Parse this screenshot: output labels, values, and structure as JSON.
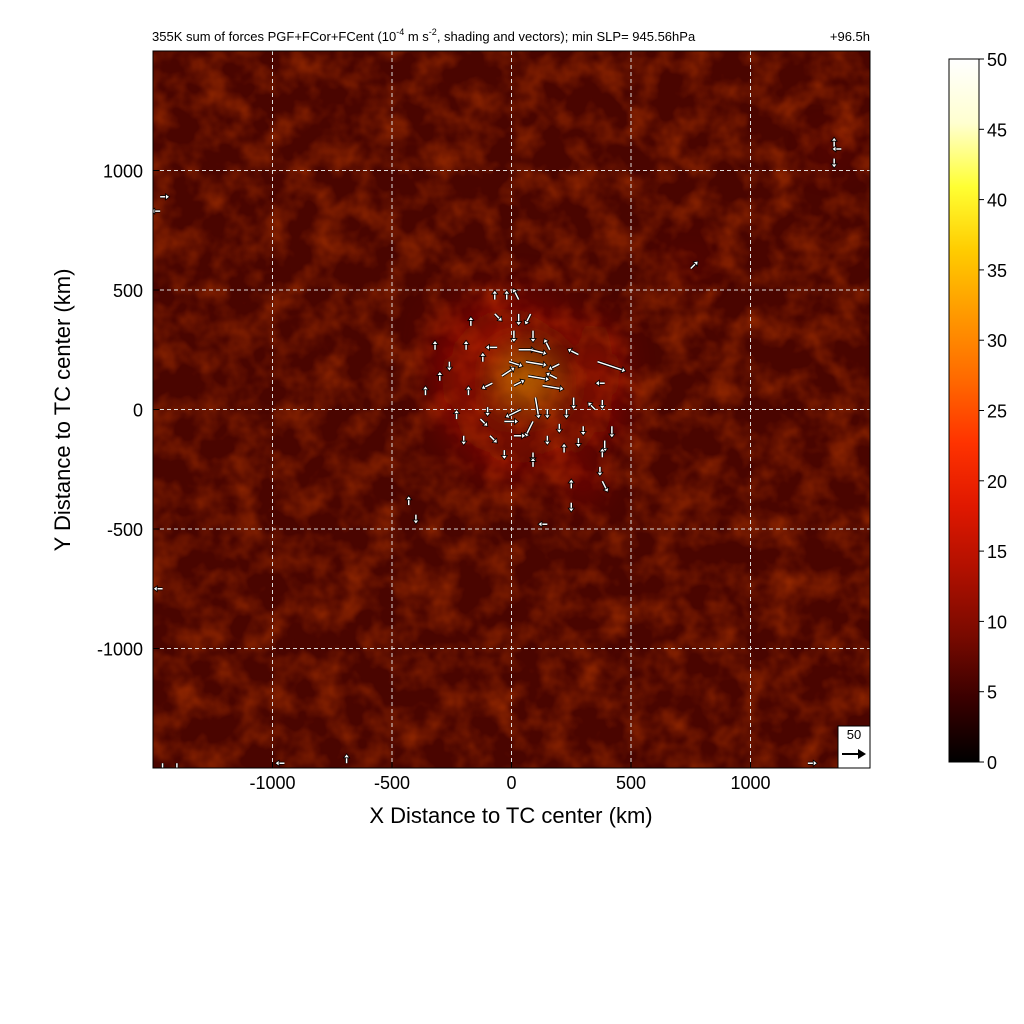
{
  "chart_data": {
    "type": "heatmap",
    "title": "355K sum of forces PGF+FCor+FCent (10",
    "title_exp": "-4",
    "title_mid": " m s",
    "title_exp2": "-2",
    "title_end": ", shading and vectors); min SLP= 945.56hPa",
    "time_label": "+96.5h",
    "xlabel": "X Distance to TC center (km)",
    "ylabel": "Y Distance to TC center (km)",
    "xlim": [
      -1500,
      1500
    ],
    "ylim": [
      -1500,
      1500
    ],
    "xticks": [
      -1000,
      -500,
      0,
      500,
      1000
    ],
    "yticks": [
      1000,
      500,
      0,
      -500,
      -1000
    ],
    "grid": true,
    "colorbar": {
      "min": 0,
      "max": 50,
      "ticks": [
        50,
        45,
        40,
        35,
        30,
        25,
        20,
        15,
        10,
        5,
        0
      ],
      "colors": [
        "#000000",
        "#3a0000",
        "#7a0a00",
        "#b01000",
        "#e01800",
        "#ff3300",
        "#ff6a00",
        "#ff9900",
        "#ffcc00",
        "#ffff33",
        "#ffffd0",
        "#ffffff"
      ]
    },
    "field": {
      "background": 6,
      "center": [
        40,
        120
      ],
      "features": [
        {
          "x": 60,
          "y": 140,
          "value": 38,
          "radius": 60
        },
        {
          "x": 120,
          "y": 100,
          "value": 30,
          "radius": 50
        },
        {
          "x": 20,
          "y": 40,
          "value": 28,
          "radius": 45
        },
        {
          "x": 380,
          "y": 160,
          "value": 22,
          "radius": 40
        },
        {
          "x": -60,
          "y": 300,
          "value": 18,
          "radius": 60
        },
        {
          "x": -250,
          "y": 200,
          "value": 16,
          "radius": 50
        },
        {
          "x": -200,
          "y": 50,
          "value": 15,
          "radius": 50
        },
        {
          "x": 420,
          "y": -50,
          "value": 14,
          "radius": 45
        },
        {
          "x": 300,
          "y": -300,
          "value": 12,
          "radius": 60
        },
        {
          "x": 750,
          "y": 610,
          "value": 14,
          "radius": 30
        },
        {
          "x": 1340,
          "y": 1080,
          "value": 13,
          "radius": 30
        }
      ]
    },
    "reference_vector": {
      "label": "50",
      "magnitude": 50
    },
    "vectors": [
      {
        "x": -70,
        "y": 460,
        "u": 0,
        "v": 1
      },
      {
        "x": -20,
        "y": 460,
        "u": 0,
        "v": 1
      },
      {
        "x": 30,
        "y": 460,
        "u": -1,
        "v": 2
      },
      {
        "x": -70,
        "y": 400,
        "u": 1,
        "v": -1
      },
      {
        "x": 30,
        "y": 400,
        "u": 0,
        "v": -2
      },
      {
        "x": 80,
        "y": 400,
        "u": -1,
        "v": -2
      },
      {
        "x": -170,
        "y": 350,
        "u": 0,
        "v": 1
      },
      {
        "x": 10,
        "y": 330,
        "u": 0,
        "v": -2
      },
      {
        "x": 90,
        "y": 330,
        "u": 0,
        "v": -2
      },
      {
        "x": -320,
        "y": 250,
        "u": 0,
        "v": 1
      },
      {
        "x": -190,
        "y": 250,
        "u": 0,
        "v": 1
      },
      {
        "x": -60,
        "y": 260,
        "u": -2,
        "v": 0
      },
      {
        "x": 30,
        "y": 250,
        "u": 4,
        "v": 0
      },
      {
        "x": 80,
        "y": 250,
        "u": 4,
        "v": -1
      },
      {
        "x": 160,
        "y": 250,
        "u": -1,
        "v": 2
      },
      {
        "x": 280,
        "y": 230,
        "u": -2,
        "v": 1
      },
      {
        "x": 360,
        "y": 200,
        "u": 9,
        "v": -3
      },
      {
        "x": -260,
        "y": 200,
        "u": 0,
        "v": -1
      },
      {
        "x": -120,
        "y": 200,
        "u": 0,
        "v": 1
      },
      {
        "x": -10,
        "y": 200,
        "u": 3,
        "v": -1
      },
      {
        "x": 60,
        "y": 200,
        "u": 6,
        "v": -1
      },
      {
        "x": 200,
        "y": 190,
        "u": -2,
        "v": -1
      },
      {
        "x": -40,
        "y": 140,
        "u": 3,
        "v": 2
      },
      {
        "x": 70,
        "y": 140,
        "u": 6,
        "v": -1
      },
      {
        "x": 190,
        "y": 130,
        "u": -2,
        "v": 1
      },
      {
        "x": -300,
        "y": 120,
        "u": 0,
        "v": 1
      },
      {
        "x": -80,
        "y": 110,
        "u": -2,
        "v": -1
      },
      {
        "x": 10,
        "y": 100,
        "u": 2,
        "v": 1
      },
      {
        "x": 130,
        "y": 100,
        "u": 6,
        "v": -1
      },
      {
        "x": 390,
        "y": 110,
        "u": -1,
        "v": 0
      },
      {
        "x": -360,
        "y": 60,
        "u": 0,
        "v": 1
      },
      {
        "x": -180,
        "y": 60,
        "u": 0,
        "v": 1
      },
      {
        "x": 100,
        "y": 50,
        "u": 1,
        "v": -6
      },
      {
        "x": 260,
        "y": 50,
        "u": 0,
        "v": -2
      },
      {
        "x": 380,
        "y": 40,
        "u": 0,
        "v": -1
      },
      {
        "x": -100,
        "y": 10,
        "u": 0,
        "v": -1
      },
      {
        "x": 40,
        "y": 0,
        "u": -4,
        "v": -2
      },
      {
        "x": 150,
        "y": 0,
        "u": 0,
        "v": -1
      },
      {
        "x": 230,
        "y": 0,
        "u": 0,
        "v": -1
      },
      {
        "x": 350,
        "y": 0,
        "u": -1,
        "v": 1
      },
      {
        "x": -230,
        "y": -40,
        "u": 0,
        "v": 1
      },
      {
        "x": -130,
        "y": -40,
        "u": 1,
        "v": -1
      },
      {
        "x": -30,
        "y": -50,
        "u": 3,
        "v": 0
      },
      {
        "x": 90,
        "y": -50,
        "u": -2,
        "v": -4
      },
      {
        "x": 200,
        "y": -60,
        "u": 0,
        "v": -1
      },
      {
        "x": 300,
        "y": -70,
        "u": 0,
        "v": -1
      },
      {
        "x": 420,
        "y": -70,
        "u": 0,
        "v": -2
      },
      {
        "x": -200,
        "y": -110,
        "u": 0,
        "v": -1
      },
      {
        "x": -90,
        "y": -110,
        "u": 1,
        "v": -1
      },
      {
        "x": 10,
        "y": -110,
        "u": 2,
        "v": 0
      },
      {
        "x": 150,
        "y": -110,
        "u": 0,
        "v": -1
      },
      {
        "x": 280,
        "y": -120,
        "u": 0,
        "v": -1
      },
      {
        "x": 390,
        "y": -130,
        "u": 0,
        "v": -2
      },
      {
        "x": -30,
        "y": -170,
        "u": 0,
        "v": -1
      },
      {
        "x": 90,
        "y": -180,
        "u": 0,
        "v": -1
      },
      {
        "x": 220,
        "y": -180,
        "u": 0,
        "v": 1
      },
      {
        "x": 380,
        "y": -200,
        "u": 0,
        "v": 1
      },
      {
        "x": 90,
        "y": -240,
        "u": 0,
        "v": 1
      },
      {
        "x": 370,
        "y": -240,
        "u": 0,
        "v": -1
      },
      {
        "x": 380,
        "y": -300,
        "u": 1,
        "v": -2
      },
      {
        "x": 250,
        "y": -330,
        "u": 0,
        "v": 1
      },
      {
        "x": -430,
        "y": -400,
        "u": 0,
        "v": 1
      },
      {
        "x": -400,
        "y": -440,
        "u": 0,
        "v": -1
      },
      {
        "x": 250,
        "y": -390,
        "u": 0,
        "v": -1
      },
      {
        "x": 150,
        "y": -480,
        "u": -1,
        "v": 0
      },
      {
        "x": 750,
        "y": 590,
        "u": 1,
        "v": 1
      },
      {
        "x": 1350,
        "y": 1100,
        "u": 0,
        "v": 1
      },
      {
        "x": 1350,
        "y": 1050,
        "u": 0,
        "v": -1
      },
      {
        "x": 1380,
        "y": 1090,
        "u": -1,
        "v": 0
      },
      {
        "x": -1470,
        "y": 890,
        "u": 1,
        "v": 0
      },
      {
        "x": -1470,
        "y": 830,
        "u": -1,
        "v": 0
      },
      {
        "x": -1460,
        "y": -750,
        "u": -1,
        "v": 0
      },
      {
        "x": -1460,
        "y": -1480,
        "u": 0,
        "v": -1
      },
      {
        "x": -1400,
        "y": -1480,
        "u": 0,
        "v": -1
      },
      {
        "x": -950,
        "y": -1480,
        "u": -1,
        "v": 0
      },
      {
        "x": -690,
        "y": -1480,
        "u": 0,
        "v": 1
      },
      {
        "x": 1240,
        "y": -1480,
        "u": 1,
        "v": 0
      }
    ]
  }
}
